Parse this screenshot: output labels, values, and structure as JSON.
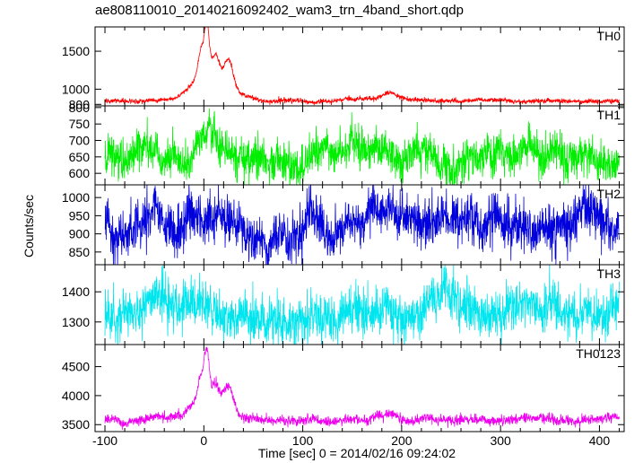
{
  "title": "ae808110010_20140216092402_wam3_trn_4band_short.qdp",
  "chart_data": {
    "type": "line",
    "title": "ae808110010_20140216092402_wam3_trn_4band_short.qdp",
    "xlabel": "Time [sec] 0 = 2014/02/16 09:24:02",
    "ylabel": "Counts/sec",
    "xlim": [
      -110,
      425
    ],
    "xticks": [
      -100,
      0,
      100,
      200,
      300,
      400
    ],
    "grid": false,
    "legend": "panel labels top-right",
    "series": [
      {
        "name": "TH0",
        "color": "#ff0000",
        "ylim": [
          780,
          1820
        ],
        "yticks": [
          800,
          1000,
          1500
        ],
        "baseline": 850,
        "noise": 15,
        "features": [
          {
            "center": 0,
            "width": 14,
            "amp": 300
          },
          {
            "center": 3,
            "width": 2.5,
            "amp": 650
          },
          {
            "center": -3,
            "width": 3,
            "amp": 350
          },
          {
            "center": 12,
            "width": 4,
            "amp": 380
          },
          {
            "center": 25,
            "width": 5,
            "amp": 470
          },
          {
            "center": 40,
            "width": 10,
            "amp": 60
          },
          {
            "center": 187,
            "width": 9,
            "amp": 90
          }
        ]
      },
      {
        "name": "TH1",
        "color": "#00ee00",
        "ylim": [
          565,
          805
        ],
        "yticks": [
          600,
          650,
          700,
          750,
          800
        ],
        "baseline": 648,
        "noise": 30,
        "features": [
          {
            "center": 5,
            "width": 10,
            "amp": 55
          },
          {
            "center": 25,
            "width": 6,
            "amp": 30
          }
        ]
      },
      {
        "name": "TH2",
        "color": "#0000dd",
        "ylim": [
          815,
          1035
        ],
        "yticks": [
          850,
          900,
          950,
          1000
        ],
        "baseline": 925,
        "noise": 32,
        "features": []
      },
      {
        "name": "TH3",
        "color": "#00e5ee",
        "ylim": [
          1225,
          1490
        ],
        "yticks": [
          1300,
          1400
        ],
        "baseline": 1340,
        "noise": 38,
        "features": []
      },
      {
        "name": "TH0123",
        "color": "#ee00ee",
        "ylim": [
          3380,
          4880
        ],
        "yticks": [
          3500,
          4000,
          4500
        ],
        "baseline": 3580,
        "noise": 42,
        "features": [
          {
            "center": 0,
            "width": 14,
            "amp": 320
          },
          {
            "center": 3,
            "width": 2.5,
            "amp": 850
          },
          {
            "center": -3,
            "width": 3,
            "amp": 400
          },
          {
            "center": 12,
            "width": 4,
            "amp": 420
          },
          {
            "center": 25,
            "width": 5,
            "amp": 500
          },
          {
            "center": 187,
            "width": 9,
            "amp": 90
          }
        ]
      }
    ],
    "resolution_sec": 0.25
  }
}
